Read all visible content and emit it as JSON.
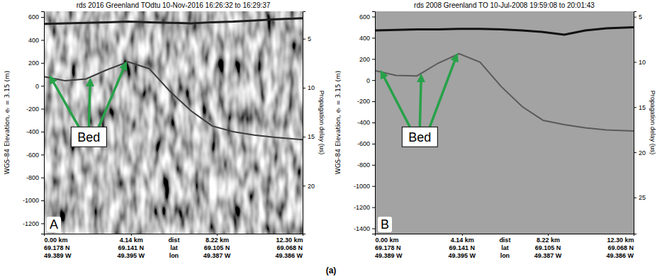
{
  "caption": "(a)",
  "chart_data": [
    {
      "type": "line",
      "title": "rds 2016 Greenland TOdtu 10-Nov-2016 16:26:32 to 16:29:37",
      "panel_label": "A",
      "ylabel": "WGS-84 Elevation, eᵣ = 3.15 (m)",
      "y2label": "Propagation delay (us)",
      "x": [
        0,
        1,
        2,
        3,
        4,
        5,
        6,
        7,
        8,
        9,
        10,
        11,
        12.3
      ],
      "xlim": [
        0,
        12.3
      ],
      "xticks": [
        {
          "value": 0,
          "label": "0.00 km"
        },
        {
          "value": 4.14,
          "label": "4.14 km"
        },
        {
          "value": 8.22,
          "label": "8.22 km"
        },
        {
          "value": 12.3,
          "label": "12.30 km"
        }
      ],
      "x_row_titles": [
        "dist",
        "lat",
        "lon"
      ],
      "lat_labels": [
        "69.178 N",
        "69.141 N",
        "69.105 N",
        "69.068 N"
      ],
      "lon_labels": [
        "49.389 W",
        "49.395 W",
        "49.387 W",
        "49.386 W"
      ],
      "ylim": [
        -1290,
        650
      ],
      "yticks": [
        600,
        400,
        200,
        0,
        -200,
        -400,
        -600,
        -800,
        -1000,
        -1200
      ],
      "y2lim": [
        2.2,
        24.9
      ],
      "y2ticks": [
        5,
        10,
        15,
        20
      ],
      "series": [
        {
          "color": "#1e1e1e",
          "values": [
            540,
            545,
            550,
            555,
            560,
            555,
            550,
            545,
            555,
            560,
            570,
            580,
            590
          ]
        },
        {
          "color": "#3c3c3c",
          "values": [
            80,
            45,
            60,
            140,
            210,
            150,
            -50,
            -220,
            -350,
            -400,
            -430,
            -450,
            -470
          ]
        }
      ],
      "annotations": [
        {
          "text": "Bed",
          "x": [
            0.3,
            2.2,
            3.9
          ],
          "y": [
            80,
            55,
            200
          ]
        }
      ]
    },
    {
      "type": "line",
      "title": "rds 2008 Greenland TO 10-Jul-2008 19:59:08 to 20:01:43",
      "panel_label": "B",
      "ylabel": "WGS-84 Elevation, eᵣ = 3.15 (m)",
      "y2label": "Propagation delay (us)",
      "x": [
        0,
        1,
        2,
        3,
        4,
        5,
        6,
        7,
        8,
        9,
        10,
        11,
        12.3
      ],
      "xlim": [
        0,
        12.3
      ],
      "xticks": [
        {
          "value": 0,
          "label": "0.00 km"
        },
        {
          "value": 4.14,
          "label": "4.14 km"
        },
        {
          "value": 8.22,
          "label": "8.22 km"
        },
        {
          "value": 12.3,
          "label": "12.30 km"
        }
      ],
      "x_row_titles": [
        "dist",
        "lat",
        "lon"
      ],
      "lat_labels": [
        "69.178 N",
        "69.141 N",
        "69.105 N",
        "69.068 N"
      ],
      "lon_labels": [
        "49.389 W",
        "49.395 W",
        "49.387 W",
        "49.386 W"
      ],
      "ylim": [
        -1450,
        650
      ],
      "yticks": [
        600,
        400,
        200,
        0,
        -200,
        -400,
        -600,
        -800,
        -1000,
        -1200,
        -1400
      ],
      "y2lim": [
        4.4,
        29.0
      ],
      "y2ticks": [
        5,
        10,
        15,
        20,
        25
      ],
      "series": [
        {
          "color": "#111111",
          "values": [
            470,
            475,
            480,
            480,
            485,
            485,
            480,
            470,
            455,
            430,
            470,
            490,
            500
          ]
        },
        {
          "color": "#5a5a5a",
          "values": [
            90,
            45,
            40,
            160,
            250,
            170,
            -60,
            -250,
            -380,
            -420,
            -450,
            -470,
            -480
          ]
        }
      ],
      "annotations": [
        {
          "text": "Bed",
          "x": [
            0.3,
            2.2,
            3.9
          ],
          "y": [
            80,
            45,
            240
          ]
        }
      ]
    }
  ]
}
